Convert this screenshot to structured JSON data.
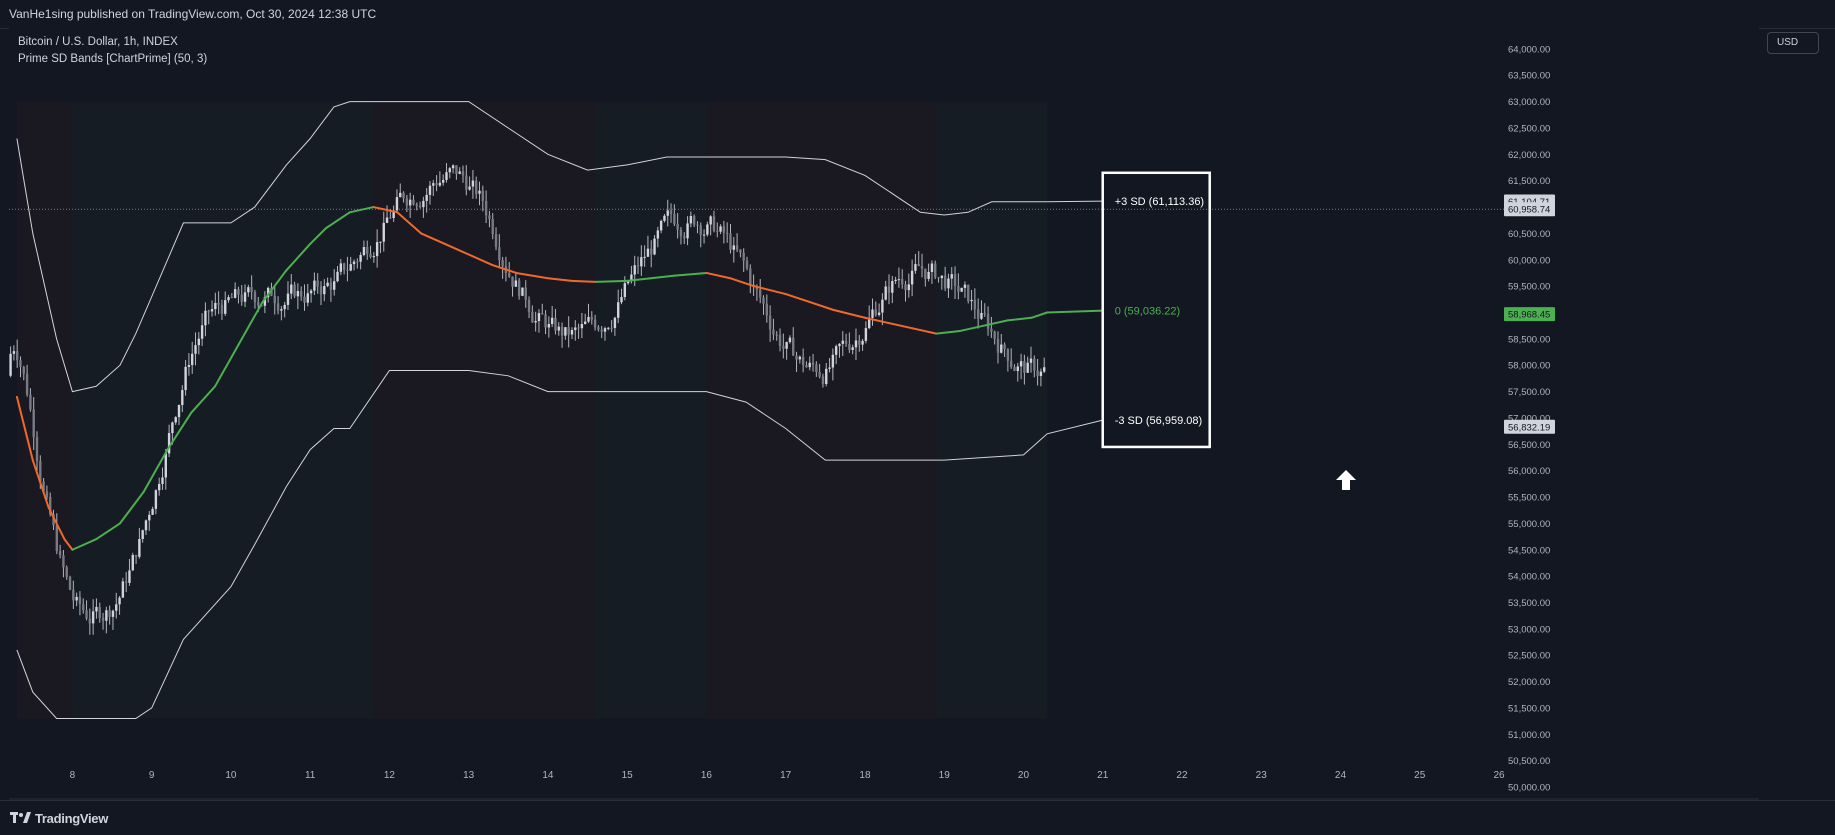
{
  "header": {
    "publisher_text": "VanHe1sing published on TradingView.com, Oct 30, 2024 12:38 UTC"
  },
  "legend": {
    "symbol_line": "Bitcoin / U.S. Dollar, 1h, INDEX",
    "indicator_line": "Prime SD Bands [ChartPrime] (50, 3)"
  },
  "currency": "USD",
  "footer": {
    "brand": "TradingView"
  },
  "colors": {
    "background": "#131722",
    "band": "#d1d4dc",
    "basis_up": "#4caf50",
    "basis_down": "#f0692c",
    "candle": "#b2b5be",
    "annotation_box": "#ffffff"
  },
  "chart_data": {
    "type": "line",
    "title": "Bitcoin / U.S. Dollar, 1h, INDEX",
    "x_tick_labels": [
      "8",
      "9",
      "10",
      "11",
      "12",
      "13",
      "14",
      "15",
      "16",
      "17",
      "18",
      "19",
      "20",
      "21",
      "22",
      "23",
      "24",
      "25",
      "26"
    ],
    "y_tick_labels": [
      "50,000.00",
      "50,500.00",
      "51,000.00",
      "51,500.00",
      "52,000.00",
      "52,500.00",
      "53,000.00",
      "53,500.00",
      "54,000.00",
      "54,500.00",
      "55,000.00",
      "55,500.00",
      "56,000.00",
      "56,500.00",
      "57,000.00",
      "57,500.00",
      "58,000.00",
      "58,500.00",
      "59,000.00",
      "59,500.00",
      "60,000.00",
      "60,500.00",
      "61,000.00",
      "61,500.00",
      "62,000.00",
      "62,500.00",
      "63,000.00",
      "63,500.00",
      "64,000.00"
    ],
    "xlim": [
      7.2,
      26
    ],
    "ylim": [
      49830,
      64320
    ],
    "y_scale": "linear",
    "grid": false,
    "series": [
      {
        "name": "+3 SD",
        "x": [
          7.3,
          7.5,
          7.8,
          8.0,
          8.3,
          8.6,
          8.8,
          9.0,
          9.4,
          10.0,
          10.3,
          10.7,
          11.0,
          11.3,
          11.5,
          12.0,
          12.5,
          13.0,
          13.5,
          14.0,
          14.5,
          15.0,
          15.5,
          16.0,
          16.5,
          17.0,
          17.5,
          18.0,
          18.5,
          18.7,
          19.0,
          19.3,
          19.6,
          20.0,
          20.3,
          21.0
        ],
        "y": [
          62300,
          60500,
          58500,
          57500,
          57600,
          58000,
          58600,
          59300,
          60700,
          60700,
          61000,
          61800,
          62300,
          62900,
          63000,
          63000,
          63000,
          63000,
          62500,
          62000,
          61700,
          61800,
          61950,
          61950,
          61950,
          61950,
          61900,
          61600,
          61100,
          60900,
          60850,
          60900,
          61100,
          61100,
          61100,
          61113.36
        ],
        "color": "#d1d4dc"
      },
      {
        "name": "0",
        "x": [
          7.3,
          7.5,
          7.7,
          7.9,
          8.0,
          8.3,
          8.6,
          8.9,
          9.2,
          9.5,
          9.8,
          10.1,
          10.4,
          10.7,
          11.0,
          11.2,
          11.5,
          11.8,
          12.1,
          12.4,
          12.7,
          13.0,
          13.3,
          13.6,
          14.0,
          14.3,
          14.6,
          15.0,
          15.3,
          15.6,
          16.0,
          16.3,
          16.6,
          17.0,
          17.3,
          17.6,
          18.0,
          18.3,
          18.6,
          18.9,
          19.2,
          19.5,
          19.8,
          20.1,
          20.3,
          21.0
        ],
        "y": [
          57400,
          56200,
          55300,
          54700,
          54500,
          54700,
          55000,
          55600,
          56400,
          57100,
          57600,
          58400,
          59200,
          59800,
          60300,
          60600,
          60900,
          61000,
          60900,
          60500,
          60300,
          60100,
          59900,
          59750,
          59650,
          59600,
          59580,
          59600,
          59650,
          59700,
          59750,
          59650,
          59500,
          59350,
          59200,
          59050,
          58900,
          58800,
          58700,
          58600,
          58650,
          58750,
          58850,
          58900,
          59000,
          59036.22
        ],
        "color": "#4caf50"
      },
      {
        "name": "-3 SD",
        "x": [
          7.3,
          7.5,
          7.8,
          8.0,
          8.3,
          8.6,
          8.8,
          9.0,
          9.4,
          10.0,
          10.3,
          10.7,
          11.0,
          11.3,
          11.5,
          12.0,
          12.5,
          13.0,
          13.5,
          14.0,
          14.5,
          15.0,
          15.5,
          16.0,
          16.5,
          17.0,
          17.5,
          18.0,
          18.5,
          19.0,
          19.5,
          20.0,
          20.3,
          21.0
        ],
        "y": [
          52600,
          51800,
          51300,
          51300,
          51300,
          51300,
          51300,
          51500,
          52800,
          53800,
          54600,
          55700,
          56400,
          56800,
          56800,
          57900,
          57900,
          57900,
          57800,
          57500,
          57500,
          57500,
          57500,
          57500,
          57300,
          56800,
          56200,
          56200,
          56200,
          56200,
          56250,
          56300,
          56700,
          56959.08
        ],
        "color": "#d1d4dc"
      }
    ],
    "price_labels": [
      {
        "value": 61104.71,
        "text": "61,104.71",
        "bg": "#d1d4dc",
        "fg": "#131722"
      },
      {
        "value": 60958.74,
        "text": "60,958.74",
        "bg": "#d1d4dc",
        "fg": "#131722"
      },
      {
        "value": 58968.45,
        "text": "58,968.45",
        "bg": "#4caf50",
        "fg": "#131722"
      },
      {
        "value": 56832.19,
        "text": "56,832.19",
        "bg": "#d1d4dc",
        "fg": "#131722"
      }
    ],
    "annotations": [
      {
        "text": "+3 SD (61,113.36)",
        "value": 61113.36,
        "color": "#ffffff"
      },
      {
        "text": "0 (59,036.22)",
        "value": 59036.22,
        "color": "#4caf50"
      },
      {
        "text": "-3 SD (56,959.08)",
        "value": 56959.08,
        "color": "#ffffff"
      }
    ],
    "current_price_line": 60958.74
  }
}
